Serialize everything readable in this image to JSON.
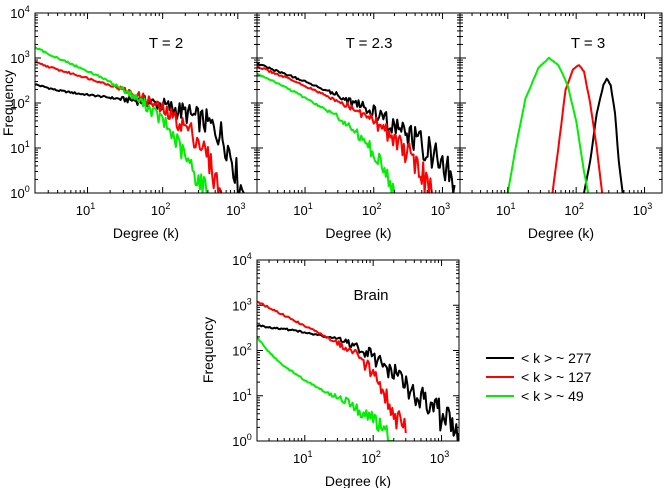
{
  "figure_caption": "",
  "legend": {
    "entries": [
      {
        "label": "< k > ~ 277",
        "color": "#000000"
      },
      {
        "label": "< k > ~ 127",
        "color": "#ff0000"
      },
      {
        "label": "< k > ~ 49",
        "color": "#00ee00"
      }
    ]
  },
  "chart_data": [
    {
      "type": "line",
      "title": "T = 2",
      "xlabel": "Degree (k)",
      "ylabel": "Frequency",
      "xscale": "log",
      "yscale": "log",
      "xlim": [
        2,
        1800
      ],
      "ylim": [
        1,
        10000
      ],
      "x_ticks": [
        "10^1",
        "10^2",
        "10^3"
      ],
      "y_ticks": [
        "10^0",
        "10^1",
        "10^2",
        "10^3",
        "10^4"
      ],
      "series": [
        {
          "name": "< k > ~ 277",
          "color": "#000000",
          "points": [
            [
              2,
              260
            ],
            [
              4,
              190
            ],
            [
              8,
              160
            ],
            [
              15,
              140
            ],
            [
              30,
              120
            ],
            [
              60,
              110
            ],
            [
              100,
              90
            ],
            [
              200,
              60
            ],
            [
              400,
              35
            ],
            [
              600,
              20
            ],
            [
              800,
              8
            ],
            [
              1000,
              2
            ],
            [
              1200,
              1
            ]
          ]
        },
        {
          "name": "< k > ~ 127",
          "color": "#ff0000",
          "points": [
            [
              2,
              800
            ],
            [
              4,
              550
            ],
            [
              8,
              400
            ],
            [
              15,
              290
            ],
            [
              30,
              200
            ],
            [
              60,
              120
            ],
            [
              100,
              70
            ],
            [
              200,
              30
            ],
            [
              300,
              15
            ],
            [
              400,
              6
            ],
            [
              500,
              2
            ],
            [
              600,
              1
            ]
          ]
        },
        {
          "name": "< k > ~ 49",
          "color": "#00ee00",
          "points": [
            [
              2,
              1700
            ],
            [
              4,
              1000
            ],
            [
              8,
              600
            ],
            [
              15,
              380
            ],
            [
              30,
              200
            ],
            [
              60,
              90
            ],
            [
              100,
              40
            ],
            [
              150,
              15
            ],
            [
              200,
              6
            ],
            [
              300,
              2
            ],
            [
              400,
              1
            ]
          ]
        }
      ]
    },
    {
      "type": "line",
      "title": "T = 2.3",
      "xlabel": "Degree (k)",
      "ylabel": "",
      "xscale": "log",
      "yscale": "log",
      "xlim": [
        2,
        1800
      ],
      "ylim": [
        1,
        10000
      ],
      "x_ticks": [
        "10^1",
        "10^2",
        "10^3"
      ],
      "y_ticks": [],
      "series": [
        {
          "name": "< k > ~ 277",
          "color": "#000000",
          "points": [
            [
              2,
              750
            ],
            [
              5,
              450
            ],
            [
              10,
              300
            ],
            [
              30,
              150
            ],
            [
              100,
              60
            ],
            [
              200,
              30
            ],
            [
              400,
              15
            ],
            [
              700,
              8
            ],
            [
              1000,
              4
            ],
            [
              1500,
              1.5
            ]
          ]
        },
        {
          "name": "< k > ~ 127",
          "color": "#ff0000",
          "points": [
            [
              2,
              650
            ],
            [
              5,
              380
            ],
            [
              10,
              240
            ],
            [
              30,
              110
            ],
            [
              100,
              40
            ],
            [
              200,
              18
            ],
            [
              300,
              8
            ],
            [
              500,
              3
            ],
            [
              700,
              1
            ]
          ]
        },
        {
          "name": "< k > ~ 49",
          "color": "#00ee00",
          "points": [
            [
              2,
              450
            ],
            [
              5,
              230
            ],
            [
              10,
              130
            ],
            [
              30,
              50
            ],
            [
              60,
              20
            ],
            [
              100,
              8
            ],
            [
              150,
              3
            ],
            [
              200,
              1
            ]
          ]
        }
      ]
    },
    {
      "type": "line",
      "title": "T = 3",
      "xlabel": "Degree (k)",
      "ylabel": "",
      "xscale": "log",
      "yscale": "log",
      "xlim": [
        2,
        1800
      ],
      "ylim": [
        1,
        10000
      ],
      "x_ticks": [
        "10^1",
        "10^2",
        "10^3"
      ],
      "y_ticks": [],
      "series": [
        {
          "name": "< k > ~ 277",
          "color": "#000000",
          "points": [
            [
              130,
              1
            ],
            [
              160,
              5
            ],
            [
              200,
              60
            ],
            [
              250,
              250
            ],
            [
              280,
              350
            ],
            [
              320,
              250
            ],
            [
              370,
              60
            ],
            [
              420,
              5
            ],
            [
              480,
              1
            ]
          ]
        },
        {
          "name": "< k > ~ 127",
          "color": "#ff0000",
          "points": [
            [
              45,
              1
            ],
            [
              55,
              10
            ],
            [
              70,
              200
            ],
            [
              90,
              550
            ],
            [
              110,
              700
            ],
            [
              130,
              500
            ],
            [
              160,
              100
            ],
            [
              200,
              10
            ],
            [
              240,
              1
            ]
          ]
        },
        {
          "name": "< k > ~ 49",
          "color": "#00ee00",
          "points": [
            [
              10,
              1
            ],
            [
              13,
              10
            ],
            [
              18,
              120
            ],
            [
              28,
              600
            ],
            [
              40,
              1000
            ],
            [
              55,
              700
            ],
            [
              75,
              250
            ],
            [
              100,
              40
            ],
            [
              130,
              3
            ],
            [
              150,
              1
            ]
          ]
        }
      ]
    },
    {
      "type": "line",
      "title": "Brain",
      "xlabel": "Degree (k)",
      "ylabel": "Frequency",
      "xscale": "log",
      "yscale": "log",
      "xlim": [
        2,
        1800
      ],
      "ylim": [
        1,
        10000
      ],
      "x_ticks": [
        "10^1",
        "10^2",
        "10^3"
      ],
      "y_ticks": [
        "10^0",
        "10^1",
        "10^2",
        "10^3",
        "10^4"
      ],
      "series": [
        {
          "name": "< k > ~ 277",
          "color": "#000000",
          "points": [
            [
              2,
              350
            ],
            [
              5,
              300
            ],
            [
              10,
              250
            ],
            [
              30,
              180
            ],
            [
              60,
              120
            ],
            [
              100,
              70
            ],
            [
              200,
              30
            ],
            [
              400,
              12
            ],
            [
              800,
              5
            ],
            [
              1200,
              2.5
            ],
            [
              1800,
              1.5
            ]
          ]
        },
        {
          "name": "< k > ~ 127",
          "color": "#ff0000",
          "points": [
            [
              2,
              1200
            ],
            [
              5,
              600
            ],
            [
              10,
              350
            ],
            [
              30,
              150
            ],
            [
              60,
              80
            ],
            [
              100,
              30
            ],
            [
              150,
              10
            ],
            [
              200,
              4
            ],
            [
              300,
              1.5
            ]
          ]
        },
        {
          "name": "< k > ~ 49",
          "color": "#00ee00",
          "points": [
            [
              2,
              200
            ],
            [
              3,
              90
            ],
            [
              5,
              45
            ],
            [
              10,
              22
            ],
            [
              20,
              12
            ],
            [
              40,
              8
            ],
            [
              60,
              5
            ],
            [
              100,
              3
            ],
            [
              150,
              1.5
            ],
            [
              200,
              1
            ]
          ]
        }
      ]
    }
  ]
}
